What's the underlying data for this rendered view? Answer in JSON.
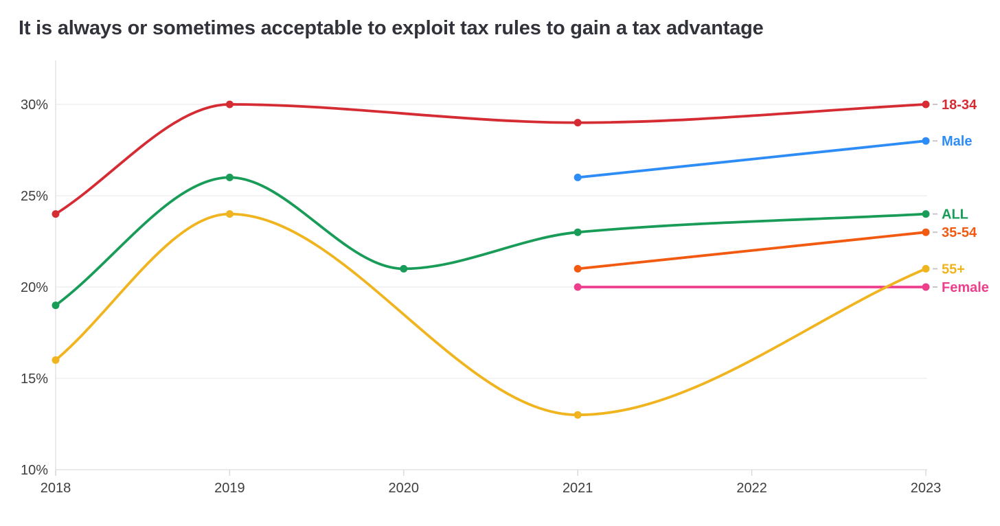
{
  "chart_data": {
    "type": "line",
    "title": "It is always or sometimes acceptable to exploit tax rules to gain a tax advantage",
    "curve": "monotone",
    "grid": "horizontal",
    "legend_position": "right-end-labels",
    "xlim": [
      2018,
      2023
    ],
    "ylim": [
      10,
      30
    ],
    "x_ticks": [
      {
        "value": 2018,
        "label": "2018"
      },
      {
        "value": 2019,
        "label": "2019"
      },
      {
        "value": 2020,
        "label": "2020"
      },
      {
        "value": 2021,
        "label": "2021"
      },
      {
        "value": 2022,
        "label": "2022"
      },
      {
        "value": 2023,
        "label": "2023"
      }
    ],
    "y_ticks": [
      {
        "value": 10,
        "label": "10%"
      },
      {
        "value": 15,
        "label": "15%"
      },
      {
        "value": 20,
        "label": "20%"
      },
      {
        "value": 25,
        "label": "25%"
      },
      {
        "value": 30,
        "label": "30%"
      }
    ],
    "series": [
      {
        "name": "18-34",
        "color": "#d52b33",
        "points": [
          [
            2018,
            24
          ],
          [
            2019,
            30
          ],
          [
            2021,
            29
          ],
          [
            2023,
            30
          ]
        ]
      },
      {
        "name": "Male",
        "color": "#2e8cf6",
        "points": [
          [
            2021,
            26
          ],
          [
            2023,
            28
          ]
        ]
      },
      {
        "name": "ALL",
        "color": "#189c58",
        "points": [
          [
            2018,
            19
          ],
          [
            2019,
            26
          ],
          [
            2020,
            21
          ],
          [
            2021,
            23
          ],
          [
            2023,
            24
          ]
        ]
      },
      {
        "name": "35-54",
        "color": "#f25a12",
        "points": [
          [
            2021,
            21
          ],
          [
            2023,
            23
          ]
        ]
      },
      {
        "name": "55+",
        "color": "#f0b41f",
        "points": [
          [
            2018,
            16
          ],
          [
            2019,
            24
          ],
          [
            2021,
            13
          ],
          [
            2023,
            21
          ]
        ]
      },
      {
        "name": "Female",
        "color": "#ee3f8d",
        "points": [
          [
            2021,
            20
          ],
          [
            2023,
            20
          ]
        ]
      }
    ]
  },
  "styles": {
    "background": "#ffffff",
    "title_color": "#32333a",
    "tick_label_color": "#3e3e3e",
    "gridline_color": "#ececec",
    "axis_line_color": "#e2e2e2",
    "tick_mark_color": "#dadada",
    "label_connector_color": "#c6c6c6"
  }
}
